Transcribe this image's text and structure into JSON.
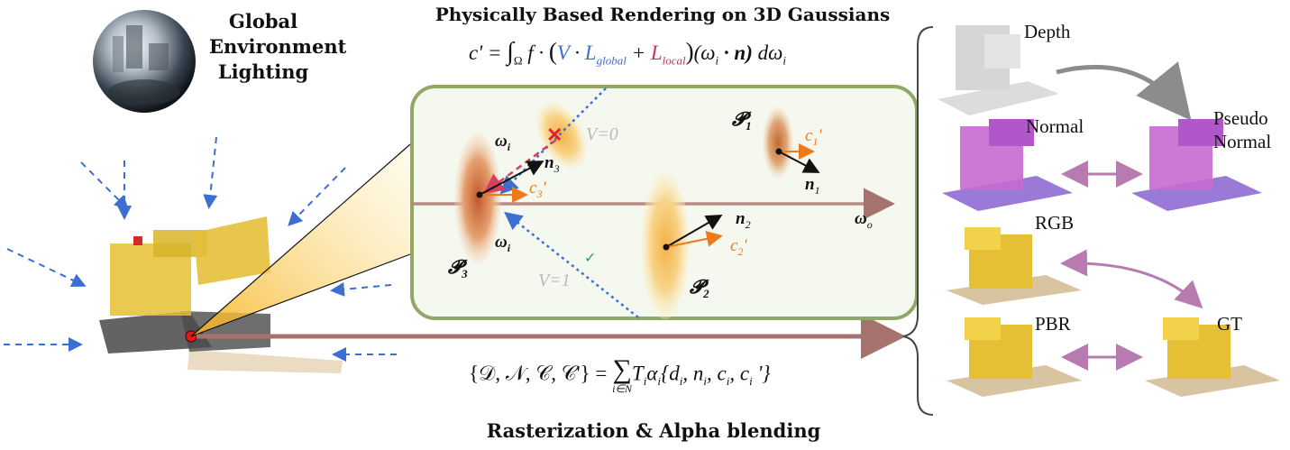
{
  "lighting": {
    "title_lines": [
      "Global",
      "Environment",
      "Lighting"
    ]
  },
  "pbr_header": {
    "title": "Physically Based Rendering on 3D Gaussians"
  },
  "equation_render": {
    "lhs": "c' = ",
    "integral": "∫",
    "domain": "Ω",
    "f": "f",
    "V": "V",
    "L_global_base": "L",
    "L_global_sub": "global",
    "L_local_base": "L",
    "L_local_sub": "local",
    "omega_i_n": "(ω",
    "omega_sub": "i",
    "dot_n": " · n)",
    "d_omega": " dω",
    "d_omega_sub": "i"
  },
  "inset": {
    "P1": "𝓟",
    "P1_sub": "1",
    "P2": "𝓟",
    "P2_sub": "2",
    "P3": "𝓟",
    "P3_sub": "3",
    "n1": "n",
    "n1_sub": "1",
    "n2": "n",
    "n2_sub": "2",
    "n3": "n",
    "n3_sub": "3",
    "c1": "c",
    "c1_sub": "1",
    "c2": "c",
    "c2_sub": "2",
    "c3": "c",
    "c3_sub": "3",
    "prime": "'",
    "omega_i": "ω",
    "omega_i_sub": "i",
    "omega_o": "ω",
    "omega_o_sub": "o",
    "v0": "V=0",
    "v1": "V=1",
    "cross": "✕",
    "check": "✓"
  },
  "blend_equation": {
    "lhs": "{𝒟, 𝒩, 𝒞, 𝒞'} = ",
    "sum": "∑",
    "sum_sub": "i∈N",
    "rhs": "T",
    "rhs_sub": "i",
    "alpha": "α",
    "alpha_sub": "i",
    "braces": "{d",
    "d_sub": "i",
    "n": ", n",
    "n_sub": "i",
    "c": ", c",
    "c_sub": "i",
    "c2": ", c",
    "c2_sub": "i",
    "close": " '}"
  },
  "bottom_caption": "Rasterization & Alpha blending",
  "outputs": {
    "depth": "Depth",
    "normal": "Normal",
    "pseudo_normal_lines": [
      "Pseudo",
      "Normal"
    ],
    "rgb": "RGB",
    "pbr": "PBR",
    "gt": "GT"
  },
  "colors": {
    "inset_border": "#8fa865",
    "inset_fill": "#f4f8ee",
    "ray_arrow": "#a5726d",
    "blue_dash": "#3d6fd0",
    "orange": "#ef7a1a",
    "pink_arrow": "#b87bb0",
    "gray_arrow": "#8c8c8c",
    "l_global": "#3a6fcc",
    "l_local": "#cc3355"
  }
}
